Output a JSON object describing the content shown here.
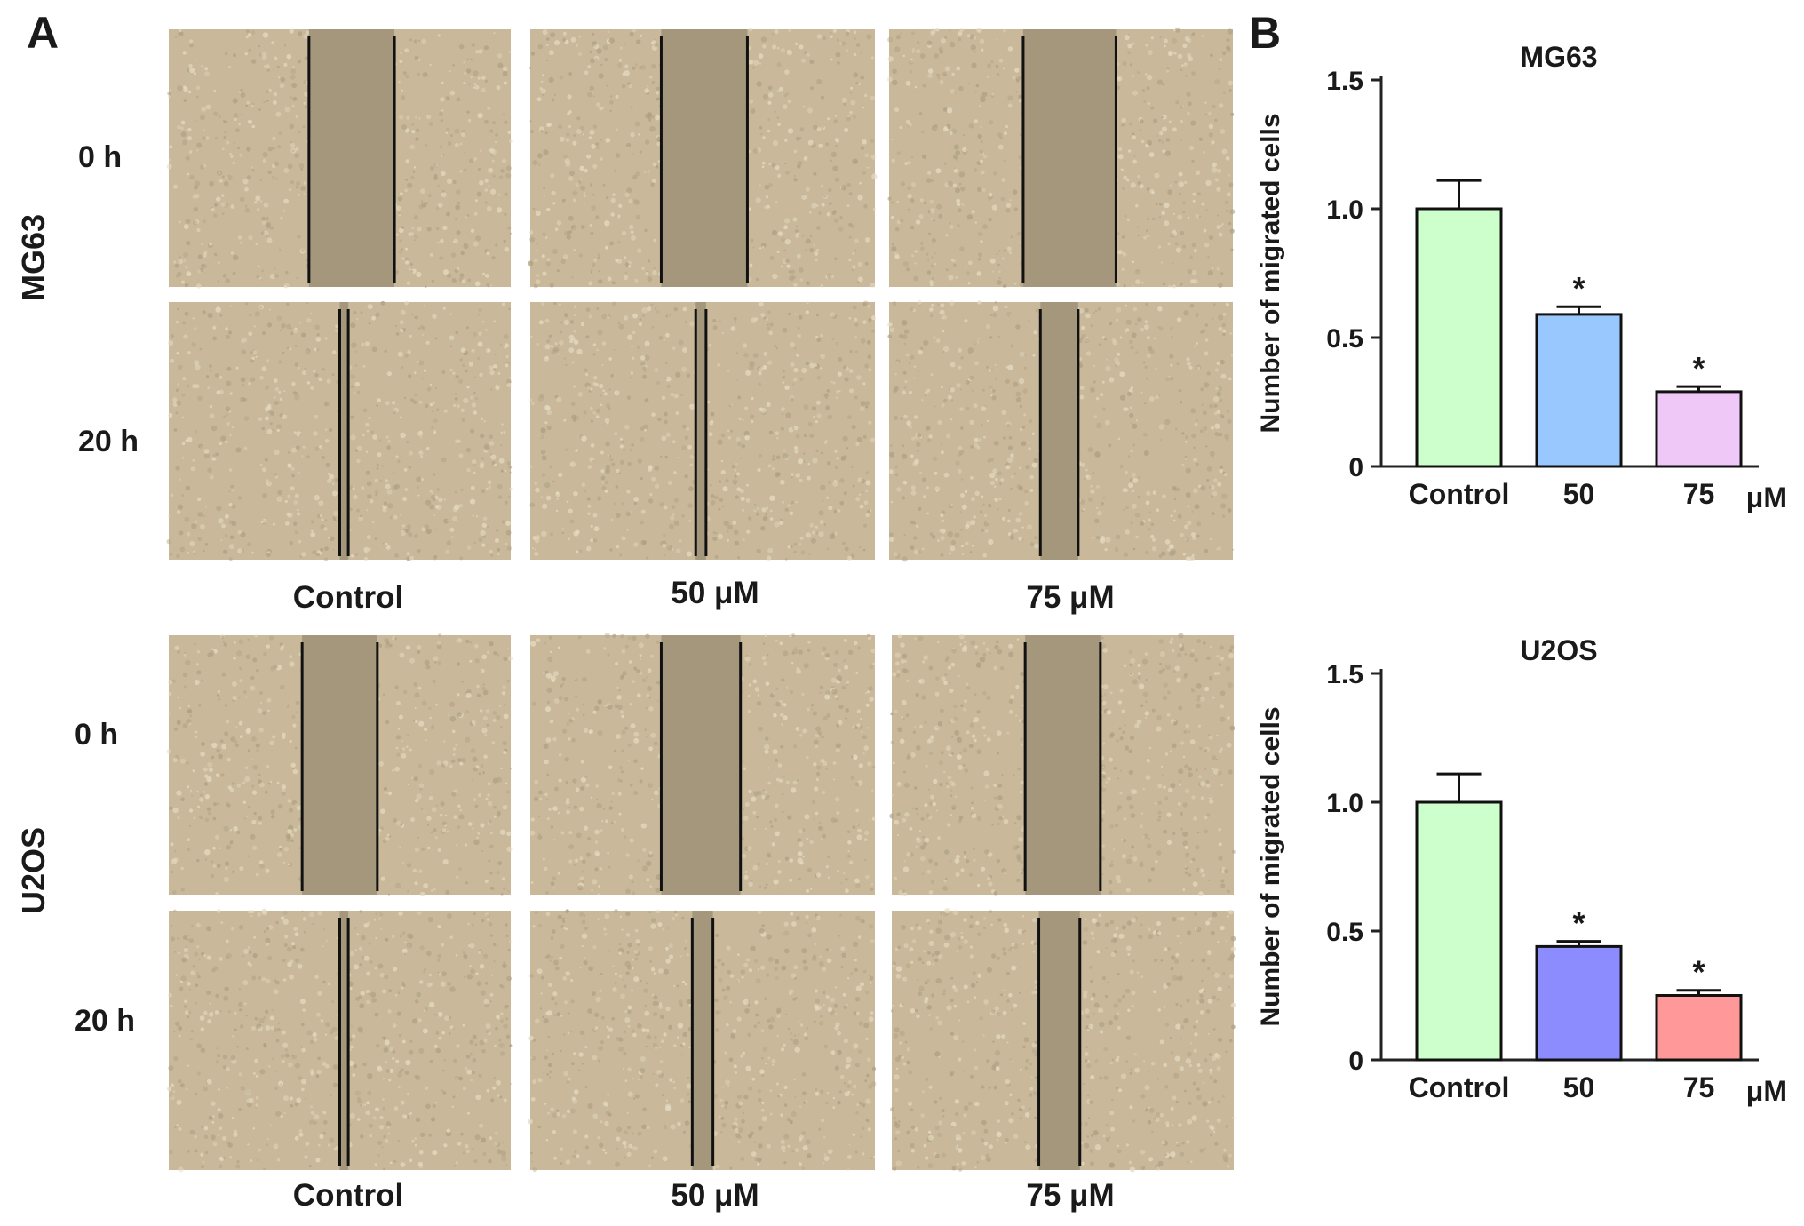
{
  "panel_a": {
    "letter": "A",
    "cell_lines": [
      {
        "name": "MG63",
        "timepoints": [
          "0 h",
          "20 h"
        ],
        "conditions": [
          "Control",
          "50 μM",
          "75 μM"
        ]
      },
      {
        "name": "U2OS",
        "timepoints": [
          "0 h",
          "20 h"
        ],
        "conditions": [
          "Control",
          "50 μM",
          "75 μM"
        ]
      }
    ],
    "colors": {
      "confluent": "#c9b99a",
      "wound": "#a4977b",
      "edge_line": "#111111"
    }
  },
  "panel_b": {
    "letter": "B"
  },
  "chart_data": [
    {
      "type": "bar",
      "title": "MG63",
      "ylabel": "Number of migrated cells",
      "xlabel": "",
      "unit_label": "μM",
      "categories": [
        "Control",
        "50",
        "75"
      ],
      "values": [
        1.0,
        0.59,
        0.29
      ],
      "errors": [
        0.11,
        0.03,
        0.02
      ],
      "significance": [
        "",
        "*",
        "*"
      ],
      "bar_colors": [
        "#ccffcc",
        "#99c8ff",
        "#f0c8f8"
      ],
      "ylim": [
        0,
        1.5
      ],
      "yticks": [
        0,
        0.5,
        1.0,
        1.5
      ],
      "ytick_labels": [
        "0",
        "0.5",
        "1.0",
        "1.5"
      ],
      "grid": false
    },
    {
      "type": "bar",
      "title": "U2OS",
      "ylabel": "Number of migrated cells",
      "xlabel": "",
      "unit_label": "μM",
      "categories": [
        "Control",
        "50",
        "75"
      ],
      "values": [
        1.0,
        0.44,
        0.25
      ],
      "errors": [
        0.11,
        0.02,
        0.02
      ],
      "significance": [
        "",
        "*",
        "*"
      ],
      "bar_colors": [
        "#ccffcc",
        "#8c8cff",
        "#ff9999"
      ],
      "ylim": [
        0,
        1.5
      ],
      "yticks": [
        0,
        0.5,
        1.0,
        1.5
      ],
      "ytick_labels": [
        "0",
        "0.5",
        "1.0",
        "1.5"
      ],
      "grid": false
    }
  ]
}
